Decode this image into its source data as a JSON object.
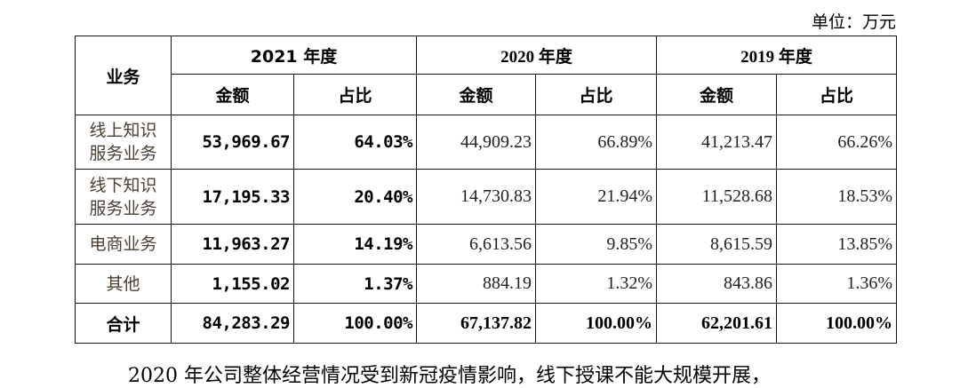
{
  "unit_label": "单位：万元",
  "header": {
    "business": "业务",
    "years": [
      "2021 年度",
      "2020 年度",
      "2019 年度"
    ],
    "amount": "金额",
    "share": "占比"
  },
  "rows": [
    {
      "name": [
        "线上知识",
        "服务业务"
      ],
      "v": [
        "53,969.67",
        "64.03%",
        "44,909.23",
        "66.89%",
        "41,213.47",
        "66.26%"
      ]
    },
    {
      "name": [
        "线下知识",
        "服务业务"
      ],
      "v": [
        "17,195.33",
        "20.40%",
        "14,730.83",
        "21.94%",
        "11,528.68",
        "18.53%"
      ]
    },
    {
      "name": [
        "电商业务"
      ],
      "v": [
        "11,963.27",
        "14.19%",
        "6,613.56",
        "9.85%",
        "8,615.59",
        "13.85%"
      ]
    },
    {
      "name": [
        "其他"
      ],
      "v": [
        "1,155.02",
        "1.37%",
        "884.19",
        "1.32%",
        "843.86",
        "1.36%"
      ]
    }
  ],
  "total": {
    "name": "合计",
    "v": [
      "84,283.29",
      "100.00%",
      "67,137.82",
      "100.00%",
      "62,201.61",
      "100.00%"
    ]
  },
  "paragraph": "2020 年公司整体经营情况受到新冠疫情影响，线下授课不能大规模开展，"
}
